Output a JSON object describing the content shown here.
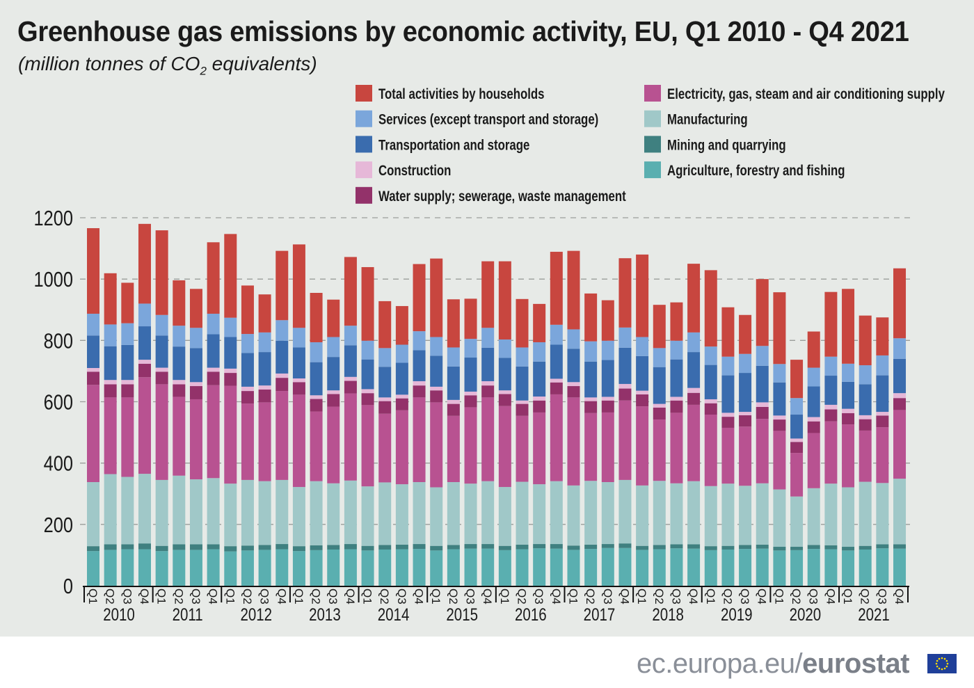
{
  "header": {
    "title": "Greenhouse gas emissions by economic activity, EU, Q1 2010 -  Q4 2021",
    "subtitle_pre": "(million tonnes of CO",
    "subtitle_sub": "2",
    "subtitle_post": " equivalents)"
  },
  "footer": {
    "site": "ec.europa.eu/",
    "brand": "eurostat"
  },
  "chart_data": {
    "type": "bar",
    "stacked": true,
    "title": "Greenhouse gas emissions by economic activity, EU, Q1 2010 -  Q4 2021",
    "ylabel": "(million tonnes of CO2 equivalents)",
    "ylim": [
      0,
      1200
    ],
    "yticks": [
      0,
      200,
      400,
      600,
      800,
      1000,
      1200
    ],
    "grid": "dashed horizontal",
    "legend_position": "top-right",
    "years": [
      "2010",
      "2011",
      "2012",
      "2013",
      "2014",
      "2015",
      "2016",
      "2017",
      "2018",
      "2019",
      "2020",
      "2021"
    ],
    "quarters": [
      "Q1",
      "Q2",
      "Q3",
      "Q4"
    ],
    "categories": [
      "2010Q1",
      "2010Q2",
      "2010Q3",
      "2010Q4",
      "2011Q1",
      "2011Q2",
      "2011Q3",
      "2011Q4",
      "2012Q1",
      "2012Q2",
      "2012Q3",
      "2012Q4",
      "2013Q1",
      "2013Q2",
      "2013Q3",
      "2013Q4",
      "2014Q1",
      "2014Q2",
      "2014Q3",
      "2014Q4",
      "2015Q1",
      "2015Q2",
      "2015Q3",
      "2015Q4",
      "2016Q1",
      "2016Q2",
      "2016Q3",
      "2016Q4",
      "2017Q1",
      "2017Q2",
      "2017Q3",
      "2017Q4",
      "2018Q1",
      "2018Q2",
      "2018Q3",
      "2018Q4",
      "2019Q1",
      "2019Q2",
      "2019Q3",
      "2019Q4",
      "2020Q1",
      "2020Q2",
      "2020Q3",
      "2020Q4",
      "2021Q1",
      "2021Q2",
      "2021Q3",
      "2021Q4"
    ],
    "series": [
      {
        "name": "Agriculture, forestry and fishing",
        "color": "#5aafb0",
        "values": [
          113,
          117,
          119,
          119,
          113,
          117,
          117,
          119,
          112,
          115,
          117,
          119,
          113,
          116,
          118,
          119,
          115,
          118,
          119,
          120,
          115,
          119,
          121,
          121,
          116,
          119,
          122,
          121,
          117,
          120,
          123,
          123,
          117,
          119,
          122,
          121,
          116,
          118,
          120,
          121,
          115,
          116,
          120,
          119,
          115,
          118,
          122,
          121
        ]
      },
      {
        "name": "Mining and quarrying",
        "color": "#3f8080",
        "values": [
          16,
          18,
          16,
          19,
          17,
          18,
          18,
          16,
          17,
          16,
          16,
          17,
          16,
          16,
          15,
          17,
          15,
          15,
          15,
          16,
          15,
          14,
          15,
          15,
          14,
          15,
          14,
          15,
          14,
          14,
          13,
          15,
          13,
          14,
          13,
          14,
          13,
          12,
          13,
          13,
          12,
          11,
          13,
          13,
          12,
          12,
          13,
          14
        ]
      },
      {
        "name": "Manufacturing",
        "color": "#a0c8c8",
        "values": [
          209,
          229,
          220,
          227,
          215,
          224,
          212,
          216,
          204,
          214,
          208,
          209,
          193,
          209,
          201,
          207,
          194,
          204,
          197,
          202,
          191,
          205,
          197,
          205,
          192,
          205,
          195,
          205,
          196,
          208,
          202,
          207,
          197,
          209,
          199,
          206,
          196,
          203,
          193,
          200,
          187,
          164,
          185,
          201,
          194,
          209,
          200,
          214
        ]
      },
      {
        "name": "Electricity, gas, steam and air conditioning supply",
        "color": "#b85291",
        "values": [
          317,
          250,
          259,
          315,
          312,
          257,
          261,
          303,
          319,
          249,
          257,
          290,
          301,
          227,
          250,
          284,
          265,
          224,
          241,
          276,
          277,
          216,
          249,
          273,
          264,
          215,
          234,
          283,
          287,
          221,
          227,
          259,
          258,
          200,
          230,
          249,
          233,
          182,
          193,
          210,
          191,
          142,
          180,
          203,
          205,
          167,
          182,
          224
        ]
      },
      {
        "name": "Water supply; sewerage, waste management",
        "color": "#93326a",
        "values": [
          43,
          43,
          43,
          44,
          41,
          41,
          43,
          44,
          42,
          41,
          42,
          43,
          41,
          41,
          41,
          41,
          39,
          41,
          39,
          39,
          39,
          39,
          39,
          39,
          39,
          39,
          39,
          39,
          37,
          39,
          39,
          39,
          39,
          39,
          40,
          39,
          37,
          36,
          37,
          39,
          37,
          36,
          38,
          39,
          37,
          37,
          38,
          39
        ]
      },
      {
        "name": "Construction",
        "color": "#e6b8d8",
        "values": [
          12,
          14,
          14,
          13,
          13,
          14,
          13,
          13,
          14,
          14,
          13,
          14,
          12,
          12,
          12,
          13,
          13,
          12,
          12,
          14,
          12,
          13,
          12,
          14,
          12,
          11,
          13,
          12,
          13,
          12,
          12,
          15,
          12,
          12,
          12,
          16,
          13,
          13,
          11,
          15,
          13,
          11,
          14,
          15,
          14,
          13,
          12,
          16
        ]
      },
      {
        "name": "Transportation and storage",
        "color": "#3a6cae",
        "values": [
          106,
          110,
          114,
          109,
          105,
          109,
          111,
          109,
          103,
          110,
          109,
          107,
          101,
          108,
          109,
          103,
          97,
          100,
          104,
          101,
          101,
          109,
          111,
          109,
          106,
          111,
          114,
          111,
          109,
          117,
          120,
          118,
          113,
          120,
          122,
          117,
          112,
          122,
          127,
          119,
          108,
          78,
          100,
          95,
          88,
          101,
          119,
          112
        ]
      },
      {
        "name": "Services (except transport and storage)",
        "color": "#7ba6db",
        "values": [
          71,
          71,
          71,
          74,
          67,
          68,
          66,
          67,
          63,
          62,
          64,
          67,
          64,
          65,
          65,
          64,
          61,
          61,
          59,
          62,
          61,
          62,
          61,
          65,
          60,
          62,
          63,
          65,
          63,
          66,
          63,
          66,
          62,
          62,
          61,
          64,
          60,
          61,
          62,
          65,
          60,
          54,
          61,
          62,
          59,
          62,
          65,
          67
        ]
      },
      {
        "name": "Total activities by households",
        "color": "#c8463f",
        "values": [
          279,
          167,
          132,
          260,
          276,
          148,
          127,
          233,
          273,
          158,
          124,
          226,
          272,
          161,
          122,
          224,
          240,
          153,
          126,
          219,
          256,
          157,
          131,
          217,
          255,
          158,
          125,
          238,
          256,
          156,
          132,
          226,
          269,
          141,
          125,
          224,
          249,
          161,
          127,
          218,
          234,
          125,
          118,
          211,
          244,
          162,
          124,
          228
        ]
      }
    ],
    "legend_order": [
      8,
      3,
      7,
      2,
      6,
      1,
      5,
      0,
      4
    ]
  }
}
